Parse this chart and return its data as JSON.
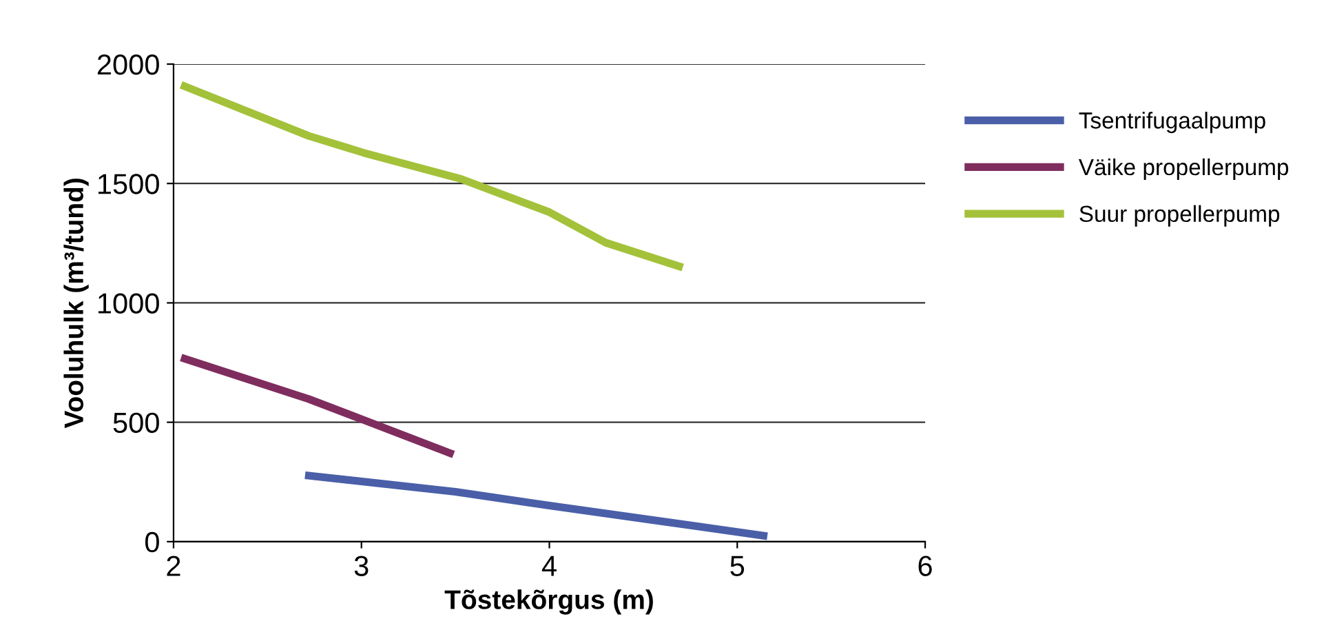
{
  "chart_data": {
    "type": "line",
    "xlabel": "Tõstekõrgus (m)",
    "ylabel": "Vooluhulk (m³/tund)",
    "xlim": [
      2,
      6
    ],
    "xticks": [
      2,
      3,
      4,
      5,
      6
    ],
    "ylim": [
      0,
      2000
    ],
    "yticks": [
      0,
      500,
      1000,
      1500,
      2000
    ],
    "grid": "y",
    "legend": "right",
    "marker": "none",
    "line_style": "solid",
    "series": [
      {
        "name": "Tsentrifugaalpump",
        "color": "#4a5fa8",
        "x": [
          2.7,
          3.5,
          4.0,
          5.16
        ],
        "values": [
          278,
          209,
          151,
          23
        ]
      },
      {
        "name": "Väike propellerpump",
        "color": "#7f2d5e",
        "x": [
          2.04,
          2.72,
          3.01,
          3.49
        ],
        "values": [
          771,
          597,
          510,
          365
        ]
      },
      {
        "name": "Suur propellerpump",
        "color": "#a4c13a",
        "x": [
          2.04,
          2.72,
          3.01,
          3.53,
          4.0,
          4.3,
          4.71
        ],
        "values": [
          1913,
          1699,
          1629,
          1519,
          1380,
          1252,
          1148
        ]
      }
    ]
  }
}
